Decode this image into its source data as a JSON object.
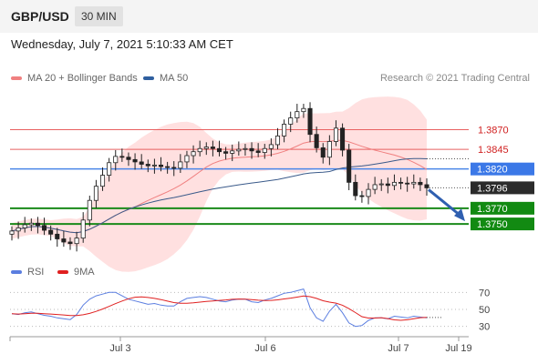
{
  "header": {
    "symbol": "GBP/USD",
    "timeframe": "30 MIN",
    "datetime": "Wednesday, July 7, 2021 5:10:33 AM CET"
  },
  "legend": {
    "items": [
      {
        "label": "MA 20 + Bollinger Bands",
        "color": "#f08080"
      },
      {
        "label": "MA 50",
        "color": "#2f5f9f"
      }
    ],
    "copyright": "Research © 2021 Trading Central"
  },
  "rsi_legend": {
    "items": [
      {
        "label": "RSI",
        "color": "#5b7ee0"
      },
      {
        "label": "9MA",
        "color": "#e02020"
      }
    ]
  },
  "chart_data": [
    {
      "type": "candlestick",
      "ylim": [
        1.372,
        1.391
      ],
      "x_ticks": [
        "Jul 3",
        "Jul 6",
        "Jul 7",
        "Jul 19"
      ],
      "closes": [
        1.3741,
        1.3745,
        1.3749,
        1.3751,
        1.3748,
        1.3742,
        1.3737,
        1.3731,
        1.3727,
        1.3725,
        1.3732,
        1.3755,
        1.378,
        1.3798,
        1.3812,
        1.3828,
        1.3836,
        1.3835,
        1.3832,
        1.3829,
        1.3826,
        1.3824,
        1.3825,
        1.3823,
        1.3822,
        1.3821,
        1.3829,
        1.3837,
        1.3842,
        1.3846,
        1.3848,
        1.3846,
        1.3842,
        1.384,
        1.3843,
        1.3845,
        1.3846,
        1.3843,
        1.3841,
        1.3846,
        1.3851,
        1.3862,
        1.3877,
        1.3885,
        1.3893,
        1.3897,
        1.3864,
        1.3847,
        1.3835,
        1.3855,
        1.3872,
        1.3844,
        1.3803,
        1.3786,
        1.3785,
        1.3794,
        1.38,
        1.3801,
        1.3799,
        1.3803,
        1.3802,
        1.3801,
        1.3803,
        1.38,
        1.3796
      ],
      "levels": [
        {
          "value": 1.387,
          "label": "1.3870",
          "kind": "resistance"
        },
        {
          "value": 1.3845,
          "label": "1.3845",
          "kind": "resistance"
        },
        {
          "value": 1.382,
          "label": "1.3820",
          "kind": "pivot"
        },
        {
          "value": 1.3796,
          "label": "1.3796",
          "kind": "last"
        },
        {
          "value": 1.377,
          "label": "1.3770",
          "kind": "support"
        },
        {
          "value": 1.375,
          "label": "1.3750",
          "kind": "support"
        }
      ],
      "target": 1.375
    },
    {
      "type": "line",
      "name": "RSI",
      "ylim": [
        20,
        80
      ],
      "y_ticks": [
        "70",
        "50",
        "30"
      ],
      "tick_values": [
        70,
        50,
        30
      ],
      "rsi": [
        45,
        44,
        46,
        47,
        45,
        43,
        42,
        40,
        39,
        38,
        44,
        55,
        62,
        66,
        68,
        70,
        70,
        66,
        62,
        60,
        58,
        56,
        57,
        55,
        54,
        54,
        59,
        63,
        64,
        65,
        64,
        62,
        60,
        59,
        61,
        62,
        62,
        59,
        58,
        61,
        63,
        66,
        69,
        70,
        72,
        74,
        52,
        40,
        36,
        48,
        56,
        46,
        34,
        30,
        31,
        37,
        40,
        40,
        39,
        42,
        41,
        40,
        42,
        41,
        40
      ]
    }
  ]
}
